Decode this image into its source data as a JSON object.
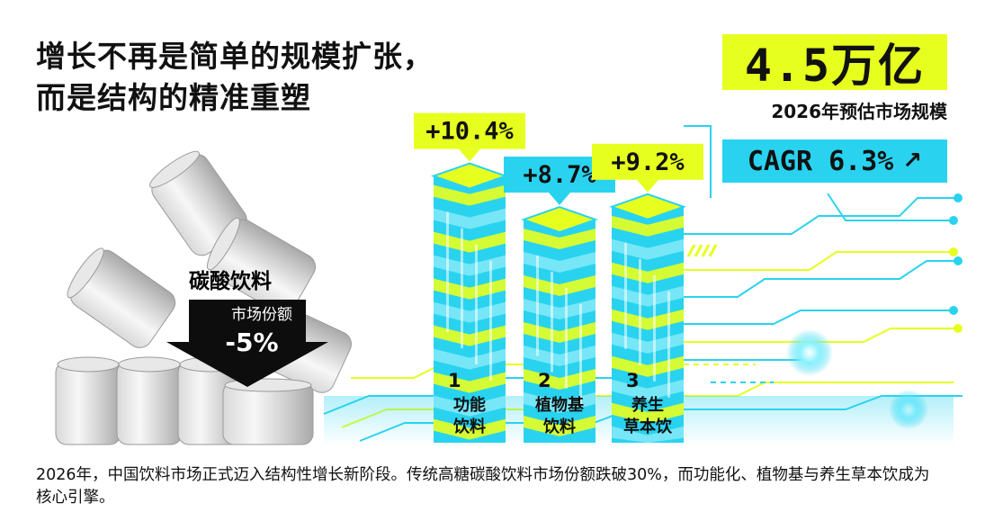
{
  "headline": {
    "line1": "增长不再是简单的规模扩张，",
    "line2": "而是结构的精准重塑"
  },
  "market": {
    "value": "4.5万亿",
    "caption": "2026年预估市场规模",
    "cagr": "CAGR 6.3%"
  },
  "soda": {
    "label": "碳酸饮料",
    "metric": "市场份额",
    "change": "-5%"
  },
  "footer": "2026年，中国饮料市场正式迈入结构性增长新阶段。传统高糖碳酸饮料市场份额跌破30%，而功能化、植物基与养生草本饮成为核心引擎。",
  "colors": {
    "yellow": "#e7ff1f",
    "cyan": "#29d3ef",
    "black": "#111111"
  },
  "chart_data": {
    "type": "bar",
    "categories": [
      "功能饮料",
      "植物基饮料",
      "养生草本饮"
    ],
    "values": [
      10.4,
      8.7,
      9.2
    ],
    "series": [
      {
        "values": [
          10.4,
          8.7,
          9.2
        ],
        "labels": [
          "+10.4%",
          "+8.7%",
          "+9.2%"
        ]
      }
    ],
    "ranks": [
      "1",
      "2",
      "3"
    ],
    "name_lines": [
      [
        "功能",
        "饮料"
      ],
      [
        "植物基",
        "饮料"
      ],
      [
        "养生",
        "草本饮"
      ]
    ],
    "label_colors": [
      "#e7ff1f",
      "#29d3ef",
      "#e7ff1f"
    ]
  }
}
